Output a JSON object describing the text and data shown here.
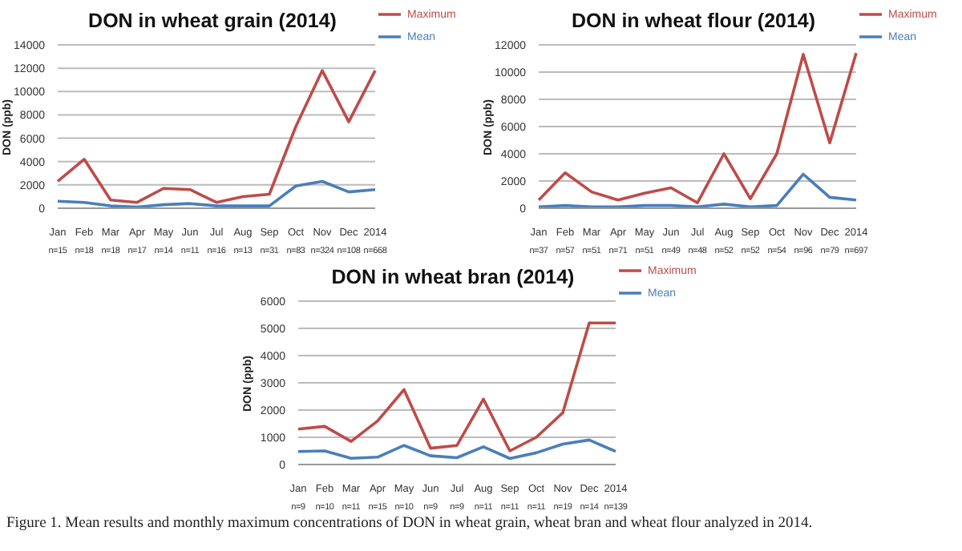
{
  "chart_data": [
    {
      "type": "line",
      "title": "DON in wheat grain (2014)",
      "ylabel": "DON (ppb)",
      "categories": [
        "Jan\nn=15",
        "Feb\nn=18",
        "Mar\nn=18",
        "Apr\nn=17",
        "May\nn=14",
        "Jun\nn=11",
        "Jul\nn=16",
        "Aug\nn=13",
        "Sep\nn=31",
        "Oct\nn=83",
        "Nov\nn=324",
        "Dec\nn=108",
        "2014\nn=668"
      ],
      "series": [
        {
          "name": "Mean",
          "color": "#4a7ebb",
          "values": [
            600,
            500,
            200,
            100,
            300,
            400,
            200,
            200,
            200,
            1900,
            2300,
            1400,
            1600
          ]
        },
        {
          "name": "Maximum",
          "color": "#be4b48",
          "values": [
            2300,
            4200,
            700,
            500,
            1700,
            1600,
            500,
            1000,
            1200,
            7000,
            11800,
            7400,
            11800
          ]
        }
      ],
      "ylim": [
        0,
        14000
      ],
      "yticks": [
        0,
        2000,
        4000,
        6000,
        8000,
        10000,
        12000,
        14000
      ],
      "grid": "y",
      "legend": "top right",
      "marker": "none",
      "line_style": "solid"
    },
    {
      "type": "line",
      "title": "DON in wheat flour (2014)",
      "ylabel": "DON (ppb)",
      "categories": [
        "Jan\nn=37",
        "Feb\nn=57",
        "Mar\nn=51",
        "Apr\nn=71",
        "May\nn=51",
        "Jun\nn=49",
        "Jul\nn=48",
        "Aug\nn=52",
        "Sep\nn=52",
        "Oct\nn=54",
        "Nov\nn=96",
        "Dec\nn=79",
        "2014\nn=697"
      ],
      "series": [
        {
          "name": "Mean",
          "color": "#4a7ebb",
          "values": [
            100,
            200,
            100,
            100,
            200,
            200,
            100,
            300,
            100,
            200,
            2500,
            800,
            600
          ]
        },
        {
          "name": "Maximum",
          "color": "#be4b48",
          "values": [
            600,
            2600,
            1200,
            600,
            1100,
            1500,
            400,
            4000,
            700,
            4000,
            11300,
            4800,
            11400
          ]
        }
      ],
      "ylim": [
        0,
        12000
      ],
      "yticks": [
        0,
        2000,
        4000,
        6000,
        8000,
        10000,
        12000
      ],
      "grid": "y",
      "legend": "top right",
      "marker": "none",
      "line_style": "solid"
    },
    {
      "type": "line",
      "title": "DON in wheat bran (2014)",
      "ylabel": "DON (ppb)",
      "categories": [
        "Jan\nn=9",
        "Feb\nn=10",
        "Mar\nn=11",
        "Apr\nn=15",
        "May\nn=10",
        "Jun\nn=9",
        "Jul\nn=9",
        "Aug\nn=11",
        "Sep\nn=11",
        "Oct\nn=11",
        "Nov\nn=19",
        "Dec\nn=14",
        "2014\nn=139"
      ],
      "series": [
        {
          "name": "Mean",
          "color": "#4a7ebb",
          "values": [
            480,
            500,
            230,
            270,
            700,
            320,
            250,
            650,
            220,
            430,
            750,
            900,
            480
          ]
        },
        {
          "name": "Maximum",
          "color": "#be4b48",
          "values": [
            1300,
            1400,
            850,
            1600,
            2750,
            600,
            700,
            2400,
            500,
            1000,
            1900,
            5200,
            5200
          ]
        }
      ],
      "ylim": [
        0,
        6000
      ],
      "yticks": [
        0,
        1000,
        2000,
        3000,
        4000,
        5000,
        6000
      ],
      "grid": "y",
      "legend": "top right",
      "marker": "none",
      "line_style": "solid",
      "annotations": [
        "Figure 1. Mean results and monthly maximum concentrations of DON in wheat grain, wheat bran and wheat flour analyzed in 2014."
      ]
    }
  ]
}
